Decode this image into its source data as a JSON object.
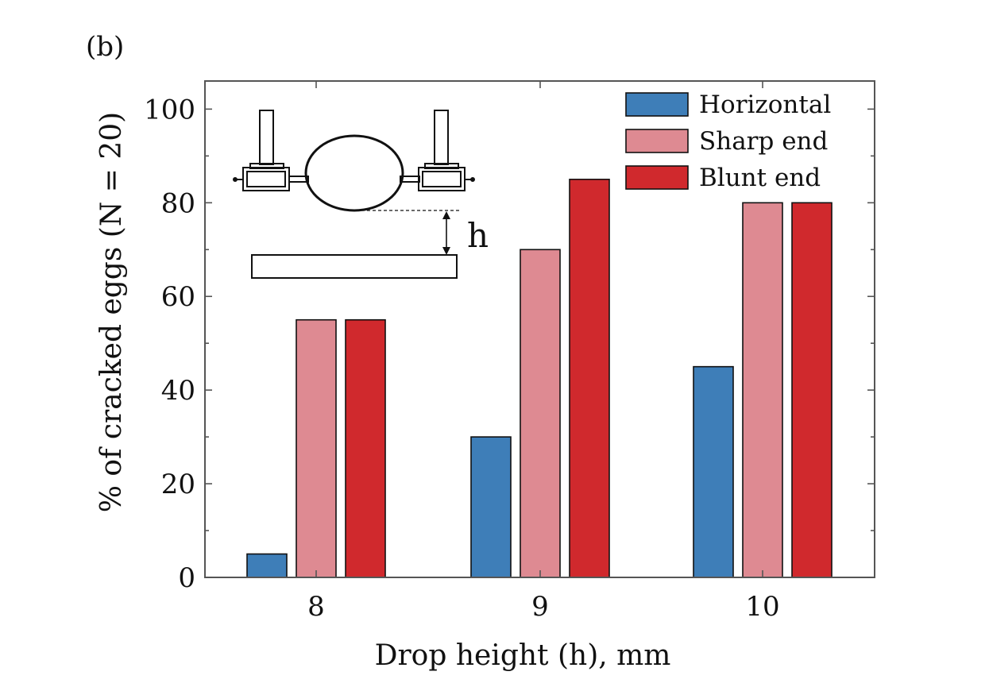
{
  "panel_label": "(b)",
  "colors": {
    "Horizontal": "#3e7eb8",
    "Sharp end": "#de8a92",
    "Blunt end": "#d0292d",
    "axis": "#555555"
  },
  "inset": {
    "height_label": "h"
  },
  "chart_data": {
    "type": "bar",
    "categories": [
      "8",
      "9",
      "10"
    ],
    "series": [
      {
        "name": "Horizontal",
        "values": [
          5,
          30,
          45
        ]
      },
      {
        "name": "Sharp end",
        "values": [
          55,
          70,
          80
        ]
      },
      {
        "name": "Blunt end",
        "values": [
          55,
          85,
          80
        ]
      }
    ],
    "xlabel": "Drop height (h), mm",
    "ylabel": "% of cracked eggs (N = 20)",
    "ylim": [
      0,
      106
    ],
    "yticks": [
      0,
      20,
      40,
      60,
      80,
      100
    ],
    "yticks_minor": [
      10,
      30,
      50,
      70,
      90
    ],
    "grid": false,
    "legend_position": "top-right"
  }
}
